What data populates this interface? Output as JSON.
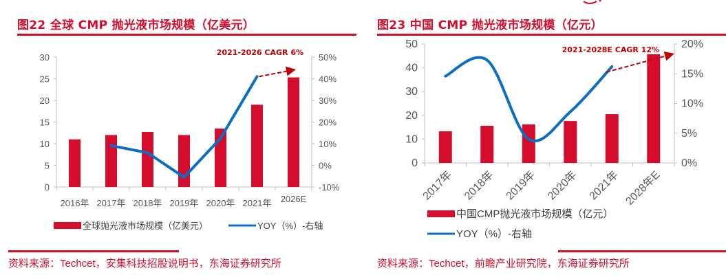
{
  "colors": {
    "accent": "#d50c2c",
    "bar": "#d50c2c",
    "line": "#0a6fc2",
    "axis": "#bfbfbf",
    "tick_text": "#595959",
    "annotation": "#c00000"
  },
  "chart_data": [
    {
      "type": "bar",
      "figure_label": "图22",
      "title": "图22  全球 CMP 抛光液市场规模（亿美元）",
      "categories": [
        "2016年",
        "2017年",
        "2018年",
        "2019年",
        "2020年",
        "2021年",
        "2026E"
      ],
      "series": [
        {
          "name": "全球抛光液市场规模（亿美元）",
          "kind": "bar",
          "axis": "left",
          "values": [
            11.0,
            12.0,
            12.7,
            12.0,
            13.5,
            19.0,
            25.3
          ]
        },
        {
          "name": "YOY（%）-右轴",
          "kind": "line",
          "axis": "right",
          "values": [
            null,
            9.1,
            5.8,
            -5.5,
            12.5,
            41.0,
            null
          ]
        }
      ],
      "ylim": [
        0,
        30
      ],
      "yticks": [
        "0",
        "5",
        "10",
        "15",
        "20",
        "25",
        "30"
      ],
      "y2lim": [
        -10,
        50
      ],
      "y2ticks": [
        "-10%",
        "0%",
        "10%",
        "20%",
        "30%",
        "40%",
        "50%"
      ],
      "annotation": "2021-2026 CAGR 6%",
      "legend": [
        "全球抛光液市场规模（亿美元）",
        "YOY（%）-右轴"
      ],
      "legend_position": "bottom",
      "grid": false,
      "source": "资料来源：Techcet，安集科技招股说明书，东海证券研究所"
    },
    {
      "type": "bar",
      "figure_label": "图23",
      "title": "图23  中国 CMP 抛光液市场规模（亿元）",
      "categories": [
        "2017年",
        "2018年",
        "2019年",
        "2020年",
        "2021年",
        "2028年E"
      ],
      "series": [
        {
          "name": "中国CMP抛光液市场规模（亿元）",
          "kind": "bar",
          "axis": "left",
          "values": [
            13.3,
            15.6,
            16.2,
            17.6,
            20.5,
            45.7
          ]
        },
        {
          "name": "YOY（%）-右轴",
          "kind": "line",
          "axis": "right",
          "smooth": true,
          "values": [
            14.6,
            17.3,
            4.0,
            8.6,
            16.2,
            null
          ]
        }
      ],
      "ylim": [
        0,
        50
      ],
      "yticks": [
        "0",
        "10",
        "20",
        "30",
        "40",
        "50"
      ],
      "y2lim": [
        0,
        20
      ],
      "y2ticks": [
        "0%",
        "5%",
        "10%",
        "15%",
        "20%"
      ],
      "annotation": "2021-2028E CAGR 12%",
      "legend": [
        "中国CMP抛光液市场规模（亿元）",
        "YOY（%）-右轴"
      ],
      "legend_position": "bottom",
      "grid": false,
      "source": "资料来源：Techcet，前瞻产业研究院，东海证券研究所"
    }
  ]
}
